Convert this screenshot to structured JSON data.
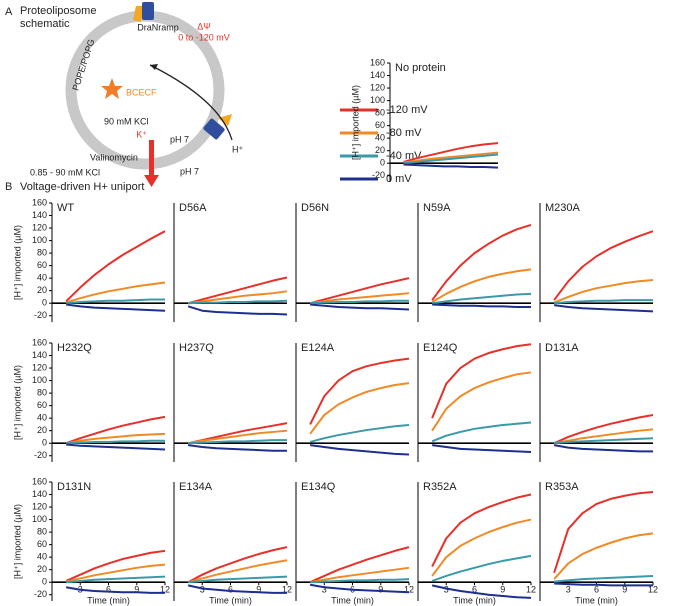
{
  "schematic": {
    "panel_label": "A",
    "title": "Proteoliposome schematic",
    "membrane": "POPE/POPG",
    "protein": "DraNramp",
    "delta_psi": "ΔΨ",
    "voltage_range": "0 to -120 mV",
    "dye": "BCECF",
    "inside_kcl": "90 mM KCl",
    "k_ion": "K⁺",
    "ph_inside": "pH 7",
    "ph_outside": "pH 7",
    "h_ion": "H⁺",
    "ionophore": "Valinomycin",
    "outside_kcl": "0.85 - 90 mM KCl"
  },
  "section_b": {
    "panel_label": "B",
    "title": "Voltage-driven H+ uniport"
  },
  "legend": [
    {
      "name": "-120 mV",
      "color": "#e8302a"
    },
    {
      "name": "-80 mV",
      "color": "#f08a24"
    },
    {
      "name": "-40 mV",
      "color": "#3a9aa8"
    },
    {
      "name": "0 mV",
      "color": "#1d2f8f"
    }
  ],
  "chart_data": [
    {
      "type": "line",
      "title": "No protein",
      "x": [
        1.5,
        3,
        4.5,
        6,
        7.5,
        9,
        10.5,
        12
      ],
      "xlim": [
        0,
        12
      ],
      "ylim": [
        -30,
        160
      ],
      "yticks": [
        -20,
        0,
        20,
        40,
        60,
        80,
        100,
        120,
        140,
        160
      ],
      "ylabel": "[H⁺] imported (µM)",
      "series": [
        {
          "values": [
            2,
            8,
            13,
            18,
            23,
            27,
            30,
            32
          ]
        },
        {
          "values": [
            1,
            4,
            7,
            9,
            11,
            13,
            15,
            17
          ]
        },
        {
          "values": [
            0,
            2,
            4,
            6,
            8,
            10,
            12,
            14
          ]
        },
        {
          "values": [
            -2,
            -3,
            -4,
            -5,
            -5,
            -6,
            -6,
            -7
          ]
        }
      ]
    },
    {
      "type": "line",
      "title": "WT",
      "x": [
        1.5,
        3,
        4.5,
        6,
        7.5,
        9,
        10.5,
        12
      ],
      "xlim": [
        0,
        12
      ],
      "ylim": [
        -30,
        160
      ],
      "yticks": [
        -20,
        0,
        20,
        40,
        60,
        80,
        100,
        120,
        140,
        160
      ],
      "ylabel": "[H⁺] imported (µM)",
      "series": [
        {
          "values": [
            3,
            25,
            45,
            62,
            77,
            90,
            103,
            115
          ]
        },
        {
          "values": [
            1,
            8,
            14,
            19,
            23,
            27,
            30,
            33
          ]
        },
        {
          "values": [
            0,
            2,
            3,
            4,
            4,
            5,
            6,
            6
          ]
        },
        {
          "values": [
            -2,
            -5,
            -7,
            -8,
            -9,
            -10,
            -11,
            -12
          ]
        }
      ]
    },
    {
      "type": "line",
      "title": "D56A",
      "x": [
        1.5,
        3,
        4.5,
        6,
        7.5,
        9,
        10.5,
        12
      ],
      "xlim": [
        0,
        12
      ],
      "ylim": [
        -30,
        160
      ],
      "series": [
        {
          "values": [
            0,
            6,
            12,
            18,
            24,
            30,
            36,
            41
          ]
        },
        {
          "values": [
            0,
            3,
            6,
            9,
            12,
            14,
            16,
            19
          ]
        },
        {
          "values": [
            0,
            1,
            1,
            2,
            2,
            3,
            3,
            4
          ]
        },
        {
          "values": [
            -5,
            -12,
            -14,
            -15,
            -16,
            -17,
            -17,
            -18
          ]
        }
      ]
    },
    {
      "type": "line",
      "title": "D56N",
      "x": [
        1.5,
        3,
        4.5,
        6,
        7.5,
        9,
        10.5,
        12
      ],
      "xlim": [
        0,
        12
      ],
      "ylim": [
        -30,
        160
      ],
      "series": [
        {
          "values": [
            0,
            6,
            12,
            18,
            24,
            30,
            35,
            40
          ]
        },
        {
          "values": [
            0,
            3,
            6,
            8,
            10,
            12,
            14,
            16
          ]
        },
        {
          "values": [
            0,
            1,
            2,
            2,
            3,
            3,
            4,
            4
          ]
        },
        {
          "values": [
            -2,
            -4,
            -6,
            -7,
            -8,
            -8,
            -9,
            -10
          ]
        }
      ]
    },
    {
      "type": "line",
      "title": "N59A",
      "x": [
        1.5,
        3,
        4.5,
        6,
        7.5,
        9,
        10.5,
        12
      ],
      "xlim": [
        0,
        12
      ],
      "ylim": [
        -30,
        160
      ],
      "series": [
        {
          "values": [
            5,
            35,
            60,
            80,
            95,
            108,
            118,
            125
          ]
        },
        {
          "values": [
            2,
            15,
            26,
            35,
            42,
            47,
            51,
            54
          ]
        },
        {
          "values": [
            0,
            3,
            6,
            8,
            10,
            12,
            14,
            15
          ]
        },
        {
          "values": [
            -2,
            -3,
            -4,
            -4,
            -5,
            -5,
            -6,
            -6
          ]
        }
      ]
    },
    {
      "type": "line",
      "title": "M230A",
      "x": [
        1.5,
        3,
        4.5,
        6,
        7.5,
        9,
        10.5,
        12
      ],
      "xlim": [
        0,
        12
      ],
      "ylim": [
        -30,
        160
      ],
      "series": [
        {
          "values": [
            5,
            35,
            58,
            75,
            88,
            98,
            107,
            115
          ]
        },
        {
          "values": [
            1,
            10,
            18,
            24,
            28,
            32,
            35,
            37
          ]
        },
        {
          "values": [
            0,
            2,
            3,
            4,
            4,
            5,
            5,
            5
          ]
        },
        {
          "values": [
            -3,
            -6,
            -8,
            -9,
            -10,
            -11,
            -12,
            -13
          ]
        }
      ]
    },
    {
      "type": "line",
      "title": "H232Q",
      "x": [
        1.5,
        3,
        4.5,
        6,
        7.5,
        9,
        10.5,
        12
      ],
      "xlim": [
        0,
        12
      ],
      "ylim": [
        -30,
        160
      ],
      "yticks": [
        -20,
        0,
        20,
        40,
        60,
        80,
        100,
        120,
        140,
        160
      ],
      "ylabel": "[H⁺] imported (µM)",
      "series": [
        {
          "values": [
            0,
            8,
            15,
            22,
            28,
            33,
            38,
            42
          ]
        },
        {
          "values": [
            0,
            4,
            7,
            9,
            11,
            13,
            14,
            15
          ]
        },
        {
          "values": [
            0,
            1,
            2,
            2,
            3,
            3,
            4,
            4
          ]
        },
        {
          "values": [
            -2,
            -4,
            -5,
            -6,
            -7,
            -8,
            -9,
            -10
          ]
        }
      ]
    },
    {
      "type": "line",
      "title": "H237Q",
      "x": [
        1.5,
        3,
        4.5,
        6,
        7.5,
        9,
        10.5,
        12
      ],
      "xlim": [
        0,
        12
      ],
      "ylim": [
        -30,
        160
      ],
      "series": [
        {
          "values": [
            0,
            5,
            10,
            15,
            20,
            24,
            28,
            32
          ]
        },
        {
          "values": [
            0,
            4,
            7,
            10,
            13,
            16,
            18,
            20
          ]
        },
        {
          "values": [
            0,
            1,
            2,
            3,
            3,
            4,
            5,
            5
          ]
        },
        {
          "values": [
            -3,
            -6,
            -8,
            -9,
            -10,
            -11,
            -12,
            -12
          ]
        }
      ]
    },
    {
      "type": "line",
      "title": "E124A",
      "x": [
        1.5,
        3,
        4.5,
        6,
        7.5,
        9,
        10.5,
        12
      ],
      "xlim": [
        0,
        12
      ],
      "ylim": [
        -30,
        160
      ],
      "series": [
        {
          "values": [
            30,
            75,
            100,
            115,
            123,
            128,
            132,
            135
          ]
        },
        {
          "values": [
            15,
            45,
            62,
            73,
            82,
            88,
            93,
            96
          ]
        },
        {
          "values": [
            2,
            8,
            13,
            17,
            21,
            24,
            27,
            29
          ]
        },
        {
          "values": [
            -3,
            -6,
            -9,
            -11,
            -13,
            -15,
            -17,
            -18
          ]
        }
      ]
    },
    {
      "type": "line",
      "title": "E124Q",
      "x": [
        1.5,
        3,
        4.5,
        6,
        7.5,
        9,
        10.5,
        12
      ],
      "xlim": [
        0,
        12
      ],
      "ylim": [
        -30,
        160
      ],
      "series": [
        {
          "values": [
            40,
            95,
            120,
            135,
            144,
            150,
            155,
            158
          ]
        },
        {
          "values": [
            20,
            55,
            75,
            88,
            97,
            104,
            110,
            113
          ]
        },
        {
          "values": [
            3,
            12,
            18,
            23,
            26,
            29,
            31,
            33
          ]
        },
        {
          "values": [
            -3,
            -6,
            -9,
            -10,
            -11,
            -12,
            -13,
            -14
          ]
        }
      ]
    },
    {
      "type": "line",
      "title": "D131A",
      "x": [
        1.5,
        3,
        4.5,
        6,
        7.5,
        9,
        10.5,
        12
      ],
      "xlim": [
        0,
        12
      ],
      "ylim": [
        -30,
        160
      ],
      "series": [
        {
          "values": [
            0,
            10,
            18,
            25,
            31,
            36,
            41,
            45
          ]
        },
        {
          "values": [
            0,
            4,
            8,
            11,
            14,
            17,
            20,
            22
          ]
        },
        {
          "values": [
            0,
            2,
            3,
            4,
            5,
            6,
            7,
            8
          ]
        },
        {
          "values": [
            -3,
            -7,
            -9,
            -10,
            -11,
            -12,
            -13,
            -13
          ]
        }
      ]
    },
    {
      "type": "line",
      "title": "D131N",
      "x": [
        1.5,
        3,
        4.5,
        6,
        7.5,
        9,
        10.5,
        12
      ],
      "xlim": [
        0,
        12
      ],
      "ylim": [
        -30,
        160
      ],
      "yticks": [
        -20,
        0,
        20,
        40,
        60,
        80,
        100,
        120,
        140,
        160
      ],
      "ylabel": "[H⁺] imported (µM)",
      "xticks": [
        3,
        6,
        9,
        12
      ],
      "xlabel": "Time (min)",
      "series": [
        {
          "values": [
            2,
            12,
            22,
            30,
            37,
            42,
            47,
            50
          ]
        },
        {
          "values": [
            1,
            6,
            11,
            15,
            19,
            23,
            26,
            28
          ]
        },
        {
          "values": [
            0,
            2,
            4,
            5,
            6,
            7,
            8,
            9
          ]
        },
        {
          "values": [
            -8,
            -12,
            -14,
            -15,
            -16,
            -16,
            -17,
            -17
          ]
        }
      ]
    },
    {
      "type": "line",
      "title": "E134A",
      "x": [
        1.5,
        3,
        4.5,
        6,
        7.5,
        9,
        10.5,
        12
      ],
      "xlim": [
        0,
        12
      ],
      "ylim": [
        -30,
        160
      ],
      "xticks": [
        3,
        6,
        9,
        12
      ],
      "xlabel": "Time (min)",
      "series": [
        {
          "values": [
            0,
            12,
            22,
            30,
            38,
            45,
            51,
            56
          ]
        },
        {
          "values": [
            0,
            6,
            12,
            17,
            22,
            27,
            31,
            35
          ]
        },
        {
          "values": [
            0,
            2,
            4,
            5,
            6,
            7,
            8,
            9
          ]
        },
        {
          "values": [
            -5,
            -10,
            -12,
            -14,
            -15,
            -16,
            -17,
            -17
          ]
        }
      ]
    },
    {
      "type": "line",
      "title": "E134Q",
      "x": [
        1.5,
        3,
        4.5,
        6,
        7.5,
        9,
        10.5,
        12
      ],
      "xlim": [
        0,
        12
      ],
      "ylim": [
        -30,
        160
      ],
      "xticks": [
        3,
        6,
        9,
        12
      ],
      "xlabel": "Time (min)",
      "series": [
        {
          "values": [
            0,
            10,
            20,
            28,
            36,
            43,
            50,
            56
          ]
        },
        {
          "values": [
            0,
            4,
            8,
            11,
            14,
            17,
            20,
            23
          ]
        },
        {
          "values": [
            0,
            1,
            2,
            3,
            3,
            4,
            4,
            5
          ]
        },
        {
          "values": [
            -4,
            -8,
            -10,
            -12,
            -13,
            -14,
            -15,
            -16
          ]
        }
      ]
    },
    {
      "type": "line",
      "title": "R352A",
      "x": [
        1.5,
        3,
        4.5,
        6,
        7.5,
        9,
        10.5,
        12
      ],
      "xlim": [
        0,
        12
      ],
      "ylim": [
        -30,
        160
      ],
      "xticks": [
        3,
        6,
        9,
        12
      ],
      "xlabel": "Time (min)",
      "series": [
        {
          "values": [
            25,
            70,
            95,
            110,
            120,
            128,
            135,
            140
          ]
        },
        {
          "values": [
            10,
            40,
            58,
            70,
            80,
            88,
            95,
            100
          ]
        },
        {
          "values": [
            2,
            10,
            17,
            23,
            29,
            34,
            38,
            42
          ]
        },
        {
          "values": [
            -5,
            -10,
            -14,
            -17,
            -20,
            -22,
            -24,
            -25
          ]
        }
      ]
    },
    {
      "type": "line",
      "title": "R353A",
      "x": [
        1.5,
        3,
        4.5,
        6,
        7.5,
        9,
        10.5,
        12
      ],
      "xlim": [
        0,
        12
      ],
      "ylim": [
        -30,
        160
      ],
      "xticks": [
        3,
        6,
        9,
        12
      ],
      "xlabel": "Time (min)",
      "series": [
        {
          "values": [
            15,
            85,
            110,
            125,
            133,
            138,
            142,
            144
          ]
        },
        {
          "values": [
            5,
            30,
            45,
            55,
            63,
            70,
            75,
            78
          ]
        },
        {
          "values": [
            1,
            3,
            5,
            6,
            7,
            8,
            9,
            10
          ]
        },
        {
          "values": [
            -2,
            -3,
            -4,
            -4,
            -5,
            -5,
            -5,
            -5
          ]
        }
      ]
    }
  ]
}
